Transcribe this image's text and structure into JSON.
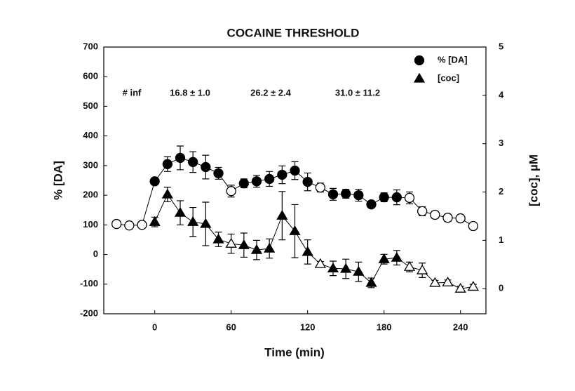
{
  "chart_data": {
    "type": "scatter",
    "title": "COCAINE THRESHOLD",
    "x_label": "Time (min)",
    "y_label": "% [DA]",
    "y2_label": "[coc], µM",
    "xlim": [
      -40,
      260
    ],
    "xticks": [
      0,
      60,
      120,
      180,
      240
    ],
    "ylim": [
      -200,
      700
    ],
    "yticks": [
      -200,
      -100,
      0,
      100,
      200,
      300,
      400,
      500,
      600,
      700
    ],
    "y2lim": [
      -0.52,
      5
    ],
    "y2ticks": [
      0,
      1,
      2,
      3,
      4,
      5
    ],
    "legend": "top-right",
    "annotations": [
      "# inf",
      "16.8 ± 1.0",
      "26.2 ± 2.4",
      "31.0 ± 11.2"
    ],
    "series": [
      {
        "name": "% [DA]",
        "marker": "circle",
        "color": "#000000",
        "x": [
          -30,
          -20,
          -10,
          0,
          10,
          20,
          30,
          40,
          50,
          60,
          70,
          80,
          90,
          100,
          110,
          120,
          130,
          140,
          150,
          160,
          170,
          180,
          190,
          200,
          210,
          220,
          230,
          240,
          250
        ],
        "values": [
          103,
          98,
          100,
          247,
          305,
          326,
          312,
          295,
          274,
          214,
          240,
          247,
          255,
          269,
          283,
          245,
          226,
          203,
          205,
          200,
          169,
          193,
          193,
          191,
          146,
          134,
          124,
          122,
          96
        ],
        "errors": [
          6,
          6,
          6,
          8,
          25,
          40,
          35,
          40,
          20,
          20,
          15,
          20,
          25,
          30,
          30,
          30,
          15,
          20,
          15,
          20,
          10,
          15,
          25,
          20,
          15,
          12,
          12,
          10,
          10
        ],
        "filled": [
          false,
          false,
          false,
          true,
          true,
          true,
          true,
          true,
          true,
          false,
          true,
          true,
          true,
          true,
          true,
          true,
          false,
          true,
          true,
          true,
          true,
          true,
          true,
          false,
          false,
          false,
          false,
          false,
          false
        ]
      },
      {
        "name": "[coc]",
        "marker": "triangle",
        "color": "#000000",
        "axis": "y2",
        "x": [
          0,
          10,
          20,
          30,
          40,
          50,
          60,
          70,
          80,
          90,
          100,
          110,
          120,
          130,
          140,
          150,
          160,
          170,
          180,
          190,
          200,
          210,
          220,
          230,
          240,
          250
        ],
        "values": [
          1.38,
          1.95,
          1.57,
          1.38,
          1.34,
          1.02,
          0.93,
          0.9,
          0.8,
          0.83,
          1.51,
          1.19,
          0.76,
          0.51,
          0.42,
          0.41,
          0.35,
          0.12,
          0.61,
          0.64,
          0.45,
          0.38,
          0.12,
          0.13,
          0.0,
          0.04
        ],
        "errors": [
          0.1,
          0.15,
          0.25,
          0.3,
          0.45,
          0.15,
          0.2,
          0.25,
          0.2,
          0.2,
          0.5,
          0.55,
          0.25,
          0.05,
          0.15,
          0.2,
          0.2,
          0.1,
          0.1,
          0.15,
          0.1,
          0.15,
          0.05,
          0.05,
          0.05,
          0.05
        ],
        "filled": [
          true,
          true,
          true,
          true,
          true,
          true,
          false,
          true,
          true,
          true,
          true,
          true,
          true,
          false,
          true,
          true,
          true,
          true,
          true,
          true,
          false,
          false,
          false,
          false,
          false,
          false
        ]
      }
    ]
  }
}
